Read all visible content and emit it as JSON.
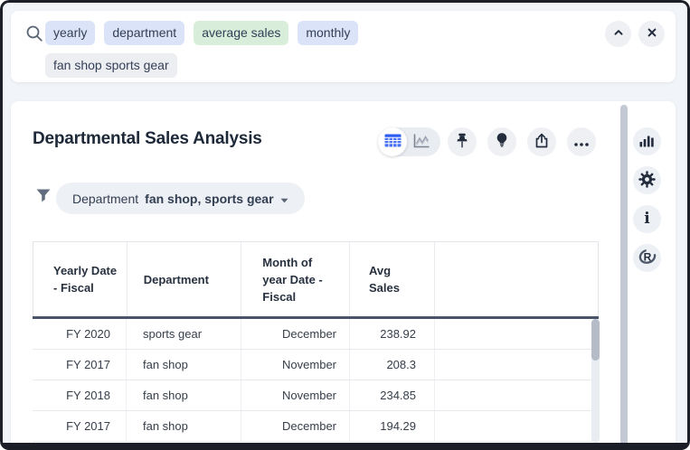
{
  "search_bar": {
    "tags": [
      {
        "label": "yearly",
        "variant": "blue",
        "row": 1
      },
      {
        "label": "department",
        "variant": "blue",
        "row": 1
      },
      {
        "label": "average sales",
        "variant": "green",
        "row": 1
      },
      {
        "label": "monthly",
        "variant": "blue",
        "row": 1
      },
      {
        "label": "fan shop sports gear",
        "variant": "gray",
        "row": 2
      }
    ],
    "icons": {
      "search": "magnifier",
      "collapse": "chevron-up",
      "close": "x"
    }
  },
  "panel": {
    "title": "Departmental Sales Analysis",
    "toolbar": {
      "view_toggle": {
        "options": [
          "table",
          "chart"
        ],
        "selected": "table"
      },
      "icons": [
        "pin",
        "lightbulb",
        "share",
        "more"
      ]
    },
    "filter": {
      "icon": "funnel",
      "label": "Department",
      "value": "fan shop, sports gear"
    },
    "table": {
      "columns": [
        "Yearly Date - Fiscal",
        "Department",
        "Month of year Date - Fiscal",
        "Avg Sales",
        ""
      ],
      "rows": [
        [
          "FY 2020",
          "sports gear",
          "December",
          "238.92"
        ],
        [
          "FY 2017",
          "fan shop",
          "November",
          "208.3"
        ],
        [
          "FY 2018",
          "fan shop",
          "November",
          "234.85"
        ],
        [
          "FY 2017",
          "fan shop",
          "December",
          "194.29"
        ]
      ]
    },
    "sidebar_icons": [
      "bar-chart",
      "gear",
      "info",
      "r-logo"
    ]
  },
  "colors": {
    "tag_blue": "#dbe3f9",
    "tag_green": "#d8edda",
    "tag_gray": "#eceef2",
    "accent_blue": "#4a72f5",
    "icon_dark": "#232c3d",
    "header_divider": "#495468",
    "window_frame": "#1b1e27"
  }
}
